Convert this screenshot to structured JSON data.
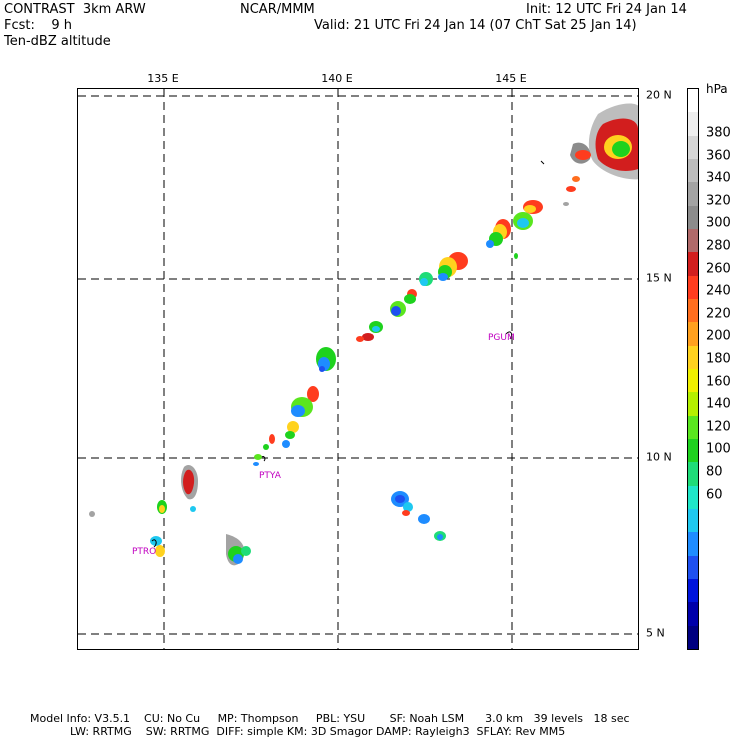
{
  "header": {
    "line1_left": "CONTRAST  3km ARW",
    "line1_mid": "NCAR/MMM",
    "line1_right": "Init: 12 UTC Fri 24 Jan 14",
    "line2_left": "Fcst:    9 h",
    "line2_right": "Valid: 21 UTC Fri 24 Jan 14 (07 ChT Sat 25 Jan 14)",
    "line3_left": "Ten-dBZ altitude"
  },
  "map": {
    "lon_labels": [
      "135 E",
      "140 E",
      "145 E"
    ],
    "lat_labels": [
      "20 N",
      "15 N",
      "10 N",
      "5 N"
    ],
    "stations": [
      "PGUM",
      "PTYA",
      "PTRO"
    ]
  },
  "colorbar": {
    "unit": "hPa",
    "labels": [
      "380",
      "360",
      "340",
      "320",
      "300",
      "280",
      "260",
      "240",
      "220",
      "200",
      "180",
      "160",
      "140",
      "120",
      "100",
      "80",
      "60"
    ],
    "colors": [
      "#ffffff",
      "#eeeeee",
      "#d6d6d6",
      "#bdbdbd",
      "#a3a3a3",
      "#8c8c8c",
      "#b06a6a",
      "#d21e1e",
      "#ff3c1e",
      "#ff6e1e",
      "#ffa01e",
      "#ffd21e",
      "#f0f000",
      "#b4f000",
      "#5ae61e",
      "#1ed21e",
      "#1edc78",
      "#1ee6c8",
      "#1ec8f0",
      "#1e8cff",
      "#1e50f0",
      "#0014dc",
      "#0000aa",
      "#000080"
    ]
  },
  "footer": {
    "line1": "Model Info: V3.5.1    CU: No Cu     MP: Thompson     PBL: YSU       SF: Noah LSM      3.0 km   39 levels   18 sec",
    "line2": "LW: RRTMG    SW: RRTMG  DIFF: simple KM: 3D Smagor DAMP: Rayleigh3  SFLAY: Rev MM5"
  }
}
